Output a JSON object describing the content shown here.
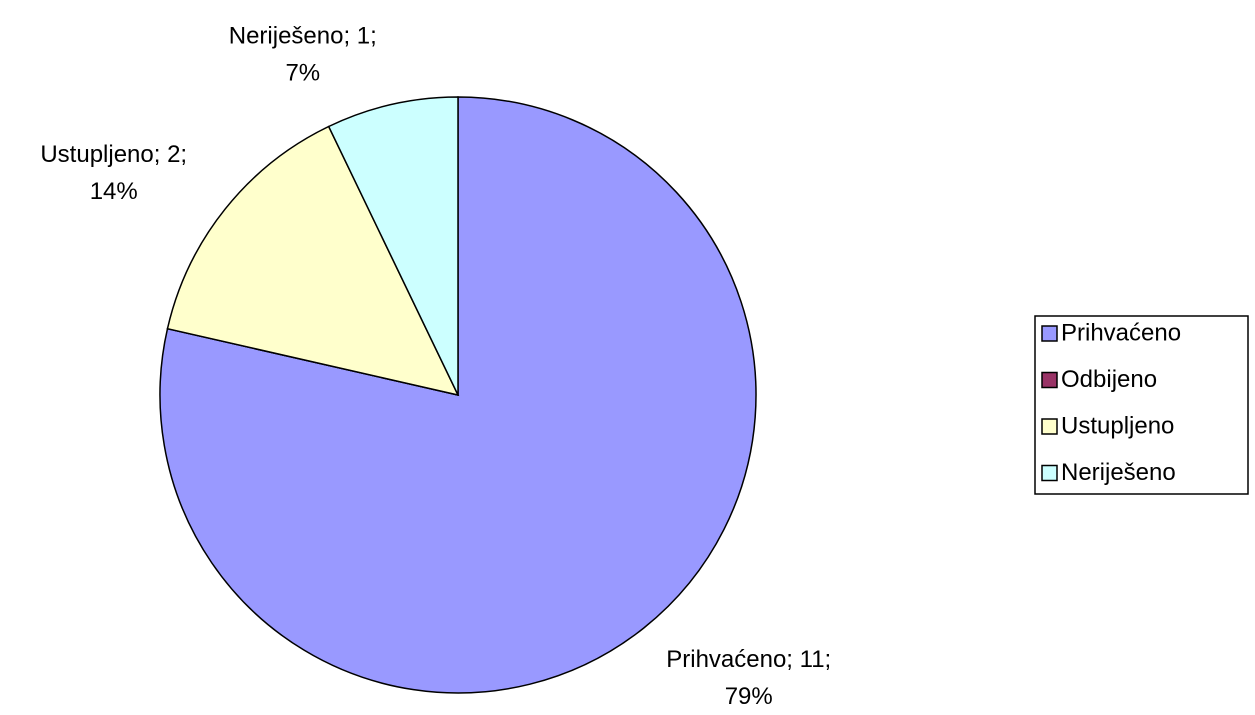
{
  "chart_data": {
    "type": "pie",
    "categories": [
      "Prihvaćeno",
      "Odbijeno",
      "Ustupljeno",
      "Neriješeno"
    ],
    "values": [
      11,
      0,
      2,
      1
    ],
    "value_labels": [
      [
        "Prihvaćeno; 11;",
        "79%"
      ],
      null,
      [
        "Ustupljeno; 2;",
        "14%"
      ],
      [
        "Neriješeno; 1;",
        "7%"
      ]
    ],
    "colors": [
      "#9999ff",
      "#993366",
      "#ffffcc",
      "#ccffff"
    ],
    "legend": "right"
  }
}
